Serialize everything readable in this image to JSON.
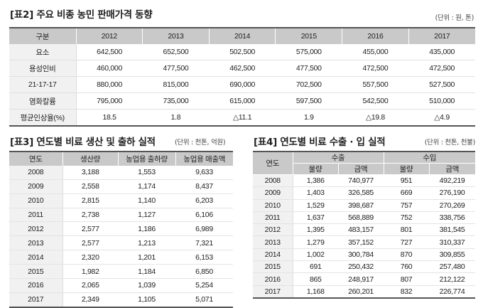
{
  "table2": {
    "title": "[표2] 주요 비종 농민 판매가격 동향",
    "unit": "(단위 : 원, 톤)",
    "headers": [
      "구분",
      "2012",
      "2013",
      "2014",
      "2015",
      "2016",
      "2017"
    ],
    "rows": [
      [
        "요소",
        "642,500",
        "652,500",
        "502,500",
        "575,000",
        "455,000",
        "435,000"
      ],
      [
        "용성인비",
        "460,000",
        "477,500",
        "462,500",
        "477,500",
        "472,500",
        "472,500"
      ],
      [
        "21-17-17",
        "880,000",
        "815,000",
        "690,000",
        "702,500",
        "557,500",
        "527,500"
      ],
      [
        "염화칼륨",
        "795,000",
        "735,000",
        "615,000",
        "597,500",
        "542,500",
        "510,000"
      ],
      [
        "평균인상율(%)",
        "18.5",
        "1.8",
        "△11.1",
        "1.9",
        "△19.8",
        "△4.9"
      ]
    ]
  },
  "table3": {
    "title": "[표3] 연도별 비료 생산 및 출하 실적",
    "unit": "(단위 : 천톤, 억원)",
    "headers": [
      "연도",
      "생산량",
      "농업용 출하량",
      "농업용 매출액"
    ],
    "rows": [
      [
        "2008",
        "3,188",
        "1,553",
        "9,633"
      ],
      [
        "2009",
        "2,558",
        "1,174",
        "8,437"
      ],
      [
        "2010",
        "2,815",
        "1,140",
        "6,203"
      ],
      [
        "2011",
        "2,738",
        "1,127",
        "6,106"
      ],
      [
        "2012",
        "2,577",
        "1,186",
        "6,989"
      ],
      [
        "2013",
        "2,577",
        "1,213",
        "7,321"
      ],
      [
        "2014",
        "2,320",
        "1,201",
        "6,153"
      ],
      [
        "2015",
        "1,982",
        "1,184",
        "6,850"
      ],
      [
        "2016",
        "2,065",
        "1,039",
        "5,254"
      ],
      [
        "2017",
        "2,349",
        "1,105",
        "5,071"
      ]
    ]
  },
  "table4": {
    "title": "[표4] 연도별 비료 수출 · 입 실적",
    "unit": "(단위 : 천톤, 천불)",
    "header_year": "연도",
    "header_groups": [
      "수출",
      "수입"
    ],
    "subheaders": [
      "물량",
      "금액",
      "물량",
      "금액"
    ],
    "rows": [
      [
        "2008",
        "1,386",
        "740,977",
        "951",
        "492,219"
      ],
      [
        "2009",
        "1,403",
        "326,585",
        "669",
        "276,190"
      ],
      [
        "2010",
        "1,529",
        "398,687",
        "757",
        "270,269"
      ],
      [
        "2011",
        "1,637",
        "568,889",
        "752",
        "338,756"
      ],
      [
        "2012",
        "1,395",
        "483,157",
        "801",
        "381,545"
      ],
      [
        "2013",
        "1,279",
        "357,152",
        "727",
        "310,337"
      ],
      [
        "2014",
        "1,002",
        "300,784",
        "870",
        "309,855"
      ],
      [
        "2015",
        "691",
        "250,432",
        "760",
        "257,480"
      ],
      [
        "2016",
        "865",
        "248,917",
        "807",
        "212,122"
      ],
      [
        "2017",
        "1,168",
        "260,201",
        "832",
        "226,774"
      ]
    ]
  }
}
